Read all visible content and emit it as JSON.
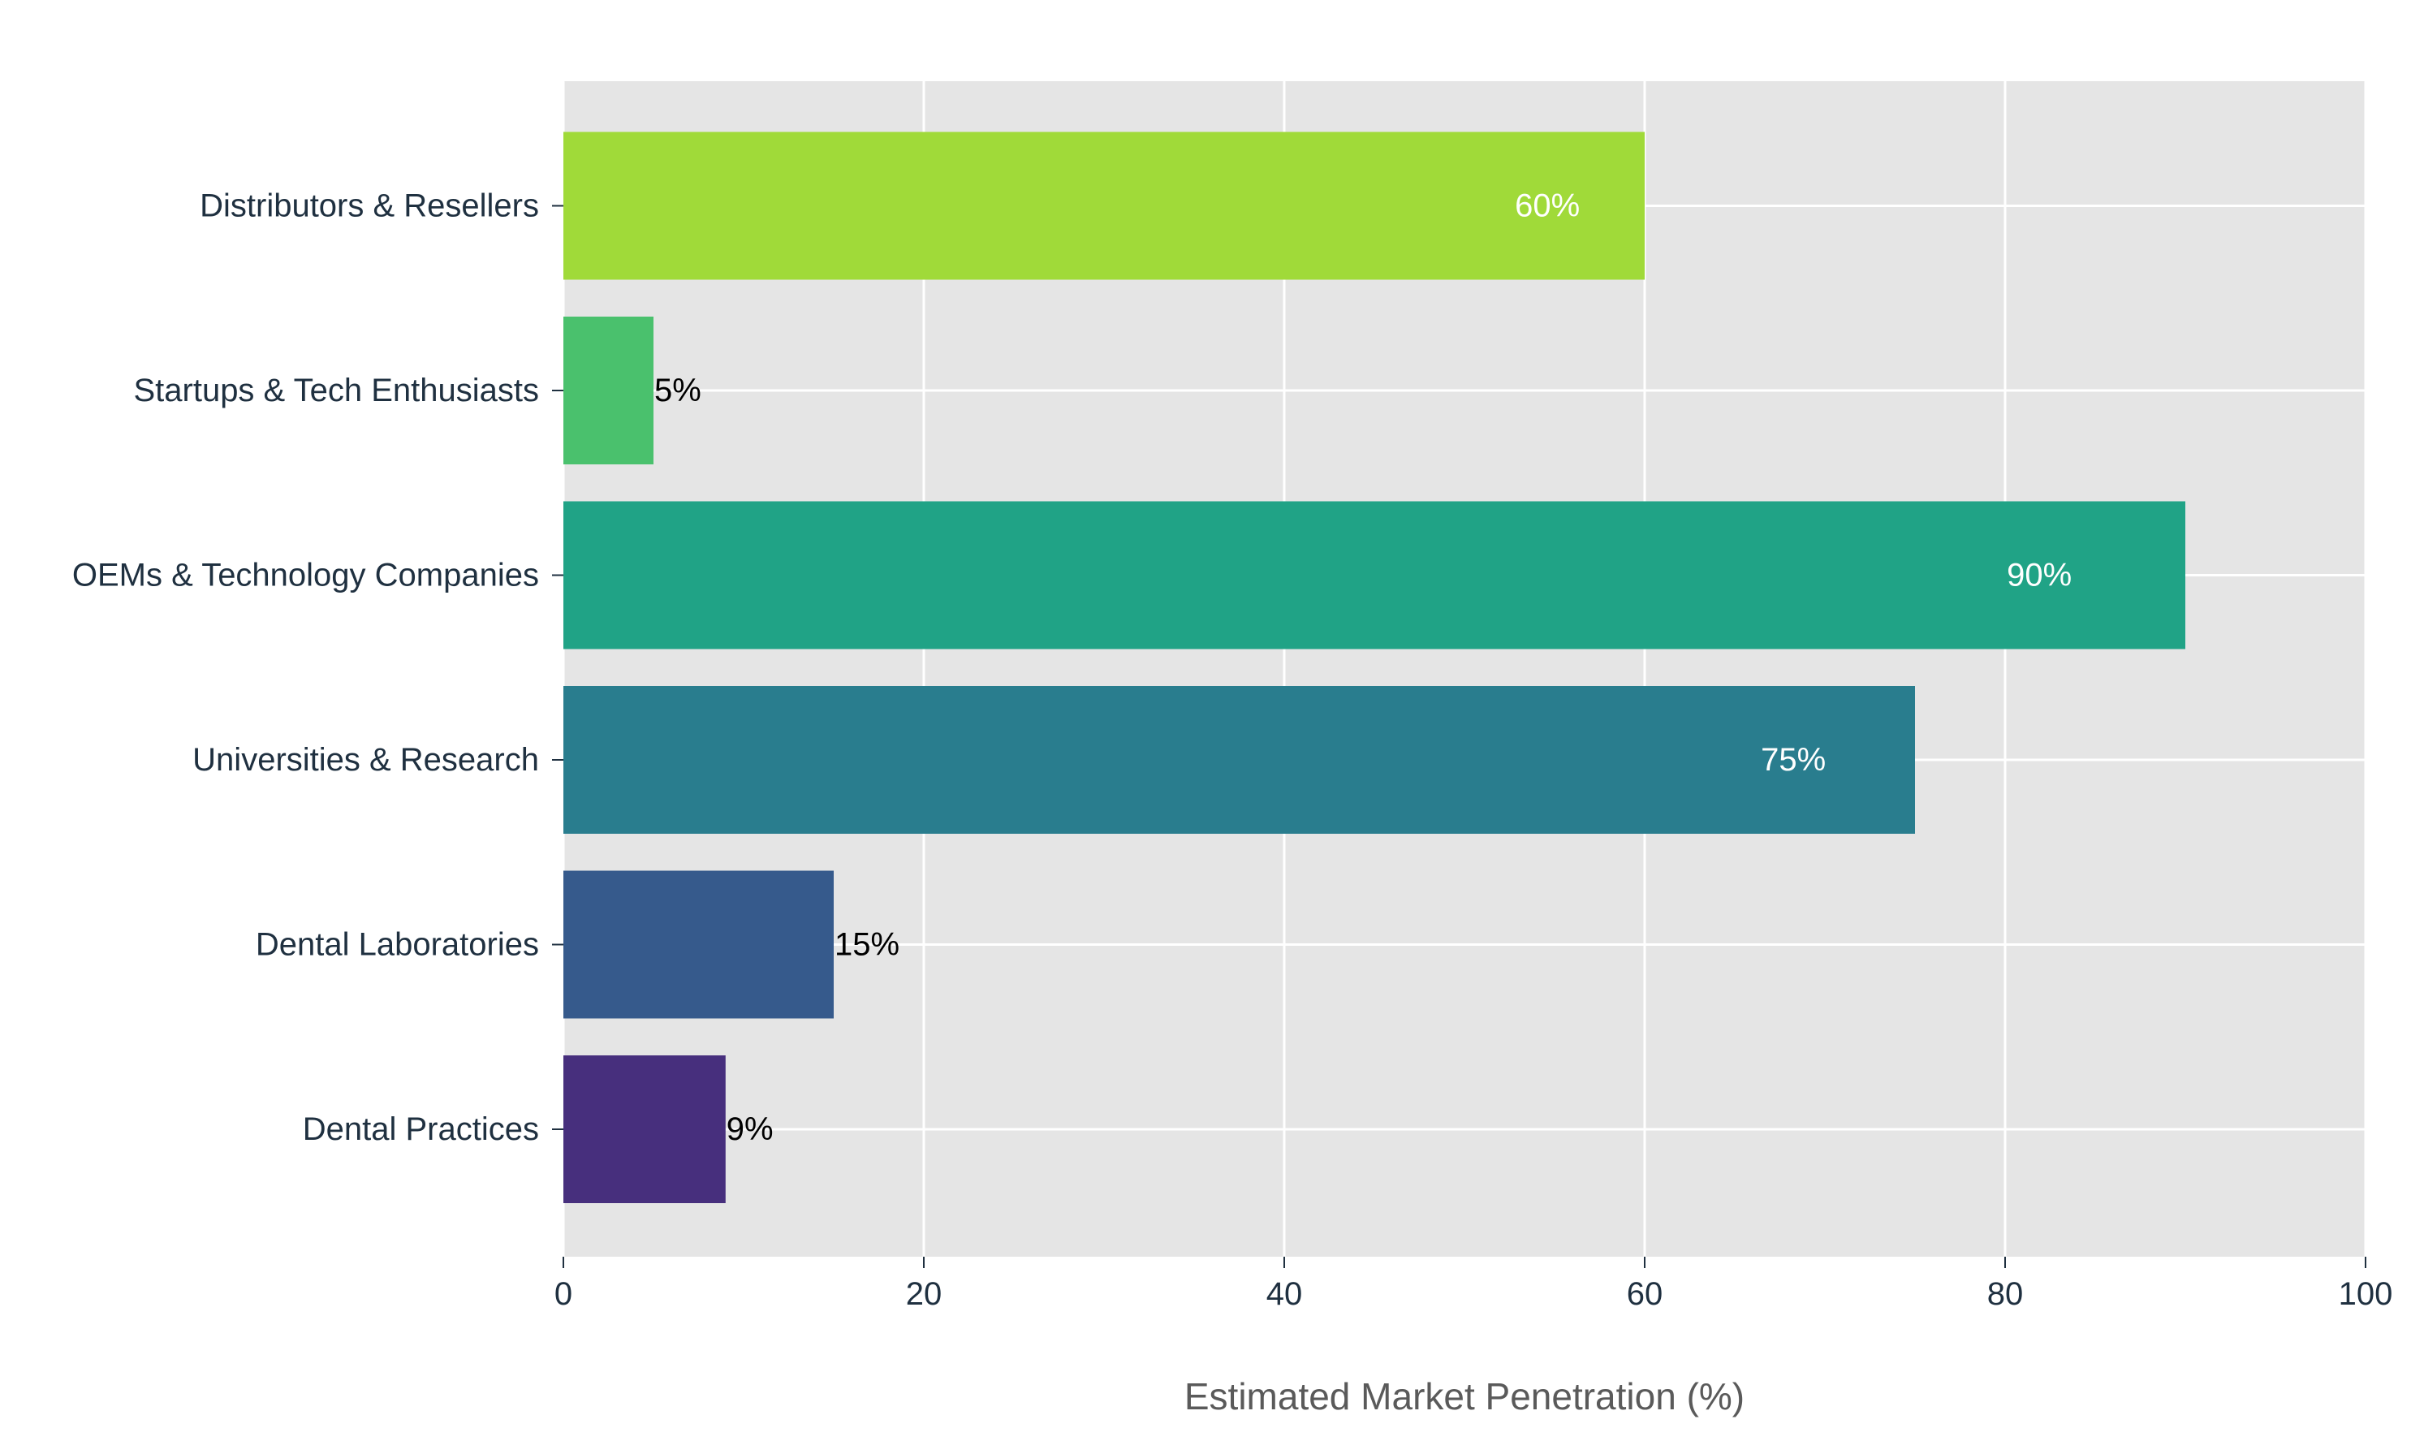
{
  "chart_data": {
    "type": "bar",
    "orientation": "horizontal",
    "title": "",
    "xlabel": "Estimated Market Penetration (%)",
    "ylabel": "",
    "xlim": [
      0,
      100
    ],
    "x_ticks": [
      0,
      20,
      40,
      60,
      80,
      100
    ],
    "grid": true,
    "legend": "none",
    "plot_background": "#e5e5e5",
    "grid_color": "#ffffff",
    "categories": [
      "Dental Practices",
      "Dental Laboratories",
      "Universities & Research",
      "OEMs & Technology Companies",
      "Startups & Tech Enthusiasts",
      "Distributors & Resellers"
    ],
    "values": [
      9,
      15,
      75,
      90,
      5,
      60
    ],
    "value_labels": [
      "9%",
      "15%",
      "75%",
      "90%",
      "5%",
      "60%"
    ],
    "label_positions": [
      "outside",
      "outside",
      "inside",
      "inside",
      "outside",
      "inside"
    ],
    "colors": [
      "#472f7d",
      "#365a8c",
      "#297d8e",
      "#20a386",
      "#4ac16d",
      "#a0da39"
    ]
  }
}
